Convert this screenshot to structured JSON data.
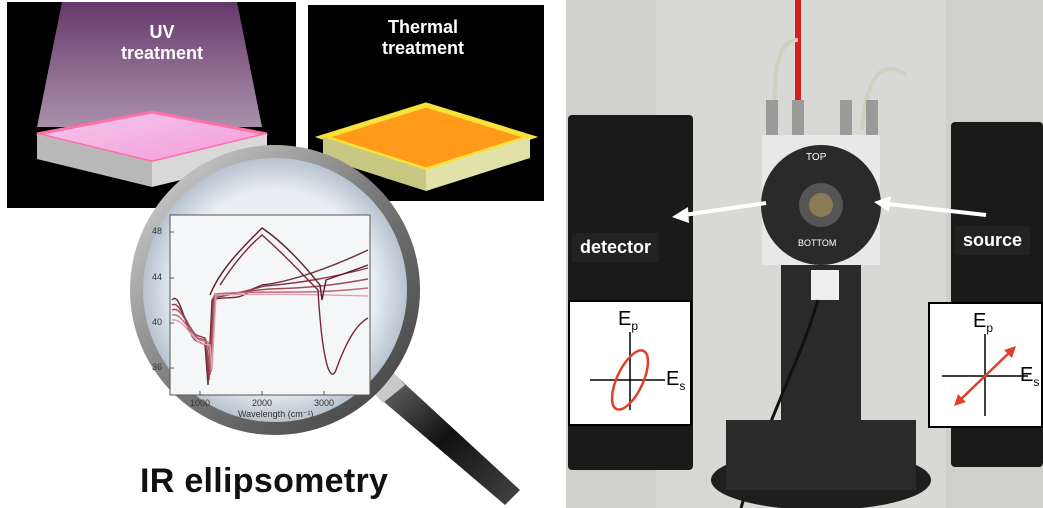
{
  "uv_panel": {
    "label_line1": "UV",
    "label_line2": "treatment"
  },
  "thermal_panel": {
    "label_line1": "Thermal",
    "label_line2": "treatment"
  },
  "caption": "IR ellipsometry",
  "inset_plot": {
    "xlabel": "Wavelength (cm⁻¹)",
    "x_ticks": [
      "1000",
      "2000",
      "3000"
    ],
    "y_ticks": [
      "48",
      "44",
      "40",
      "36"
    ]
  },
  "photo_labels": {
    "detector": "detector",
    "source": "source",
    "top": "TOP",
    "bottom": "BOTTOM"
  },
  "polarization": {
    "left": {
      "ep": "E",
      "ep_sub": "p",
      "es": "E",
      "es_sub": "s"
    },
    "right": {
      "ep": "E",
      "ep_sub": "p",
      "es": "E",
      "es_sub": "s"
    }
  },
  "colors": {
    "arrow": "#ffffff",
    "polarization": "#e0402a",
    "uv_glow": "#f5a6d8",
    "thermal_glow": "#ff9a1a"
  }
}
